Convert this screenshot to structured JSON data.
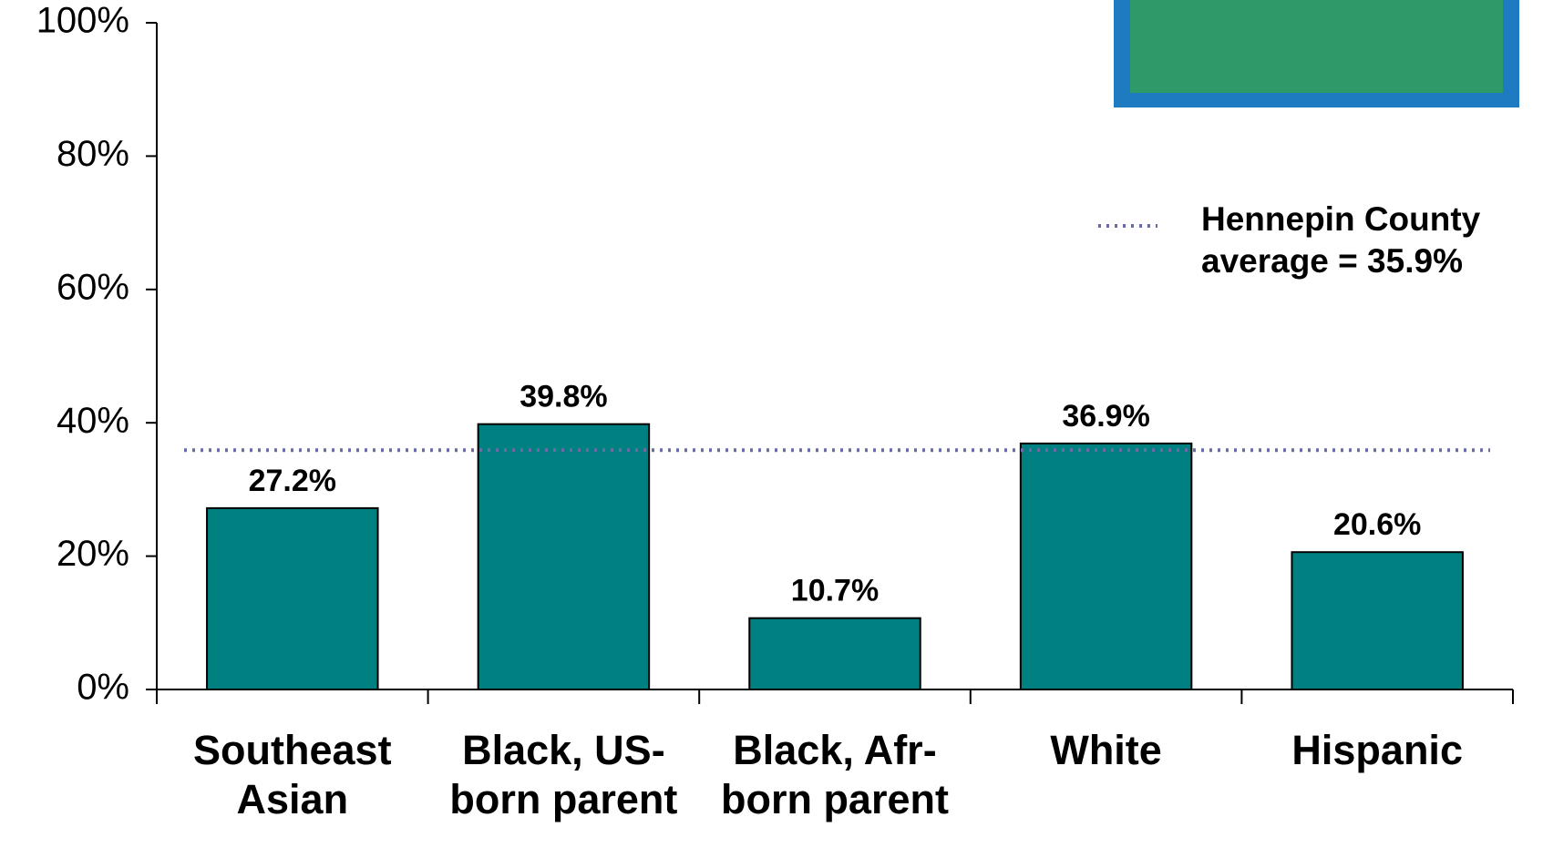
{
  "chart_data": {
    "type": "bar",
    "categories": [
      "Southeast Asian",
      "Black, US-born parent",
      "Black, Afr-born parent",
      "White",
      "Hispanic"
    ],
    "values": [
      27.2,
      39.8,
      10.7,
      36.9,
      20.6
    ],
    "value_labels": [
      "27.2%",
      "39.8%",
      "10.7%",
      "36.9%",
      "20.6%"
    ],
    "color": "#008080",
    "ylim": [
      0,
      100
    ],
    "yticks": [
      {
        "value": 0,
        "label": "0%"
      },
      {
        "value": 20,
        "label": "20%"
      },
      {
        "value": 40,
        "label": "40%"
      },
      {
        "value": 60,
        "label": "60%"
      },
      {
        "value": 80,
        "label": "80%"
      },
      {
        "value": 100,
        "label": "100%"
      }
    ],
    "reference_line": {
      "value": 35.9,
      "label": "Hennepin County average = 35.9%",
      "color": "#6b6ba8"
    }
  }
}
